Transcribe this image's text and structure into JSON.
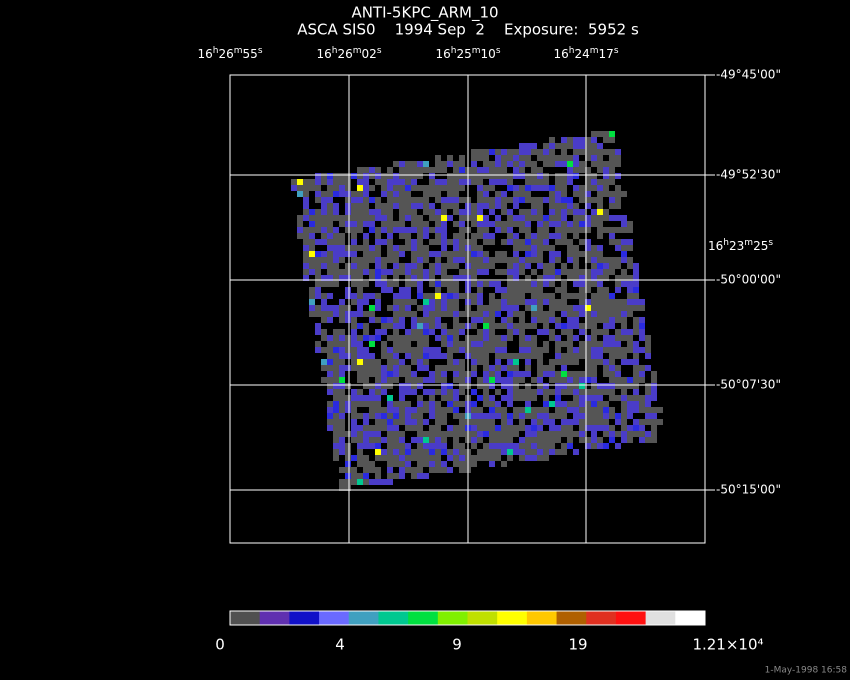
{
  "title": "ANTI-5KPC_ARM_10",
  "subtitle": "ASCA SIS0    1994 Sep  2    Exposure:  5952 s",
  "ra_labels": [
    "16h26m55s",
    "16h26m02s",
    "16h25m10s",
    "16h24m17s",
    "16h23m25s"
  ],
  "dec_labels": [
    "-49°45'00\"",
    "-49°52'30\"",
    "-50°00'00\"",
    "-50°07'30\"",
    "-50°15'00\""
  ],
  "colorbar": {
    "colors": [
      "#505050",
      "#6030b0",
      "#1010c8",
      "#6a6aff",
      "#40a0c0",
      "#00c890",
      "#00e040",
      "#80f000",
      "#c0e000",
      "#ffff00",
      "#ffc800",
      "#b06000",
      "#e03020",
      "#ff1010",
      "#e0e0e0",
      "#ffffff"
    ],
    "tick_labels": [
      "0",
      "4",
      "9",
      "19",
      "1.21×10⁴"
    ]
  },
  "timestamp": "1-May-1998 16:58"
}
